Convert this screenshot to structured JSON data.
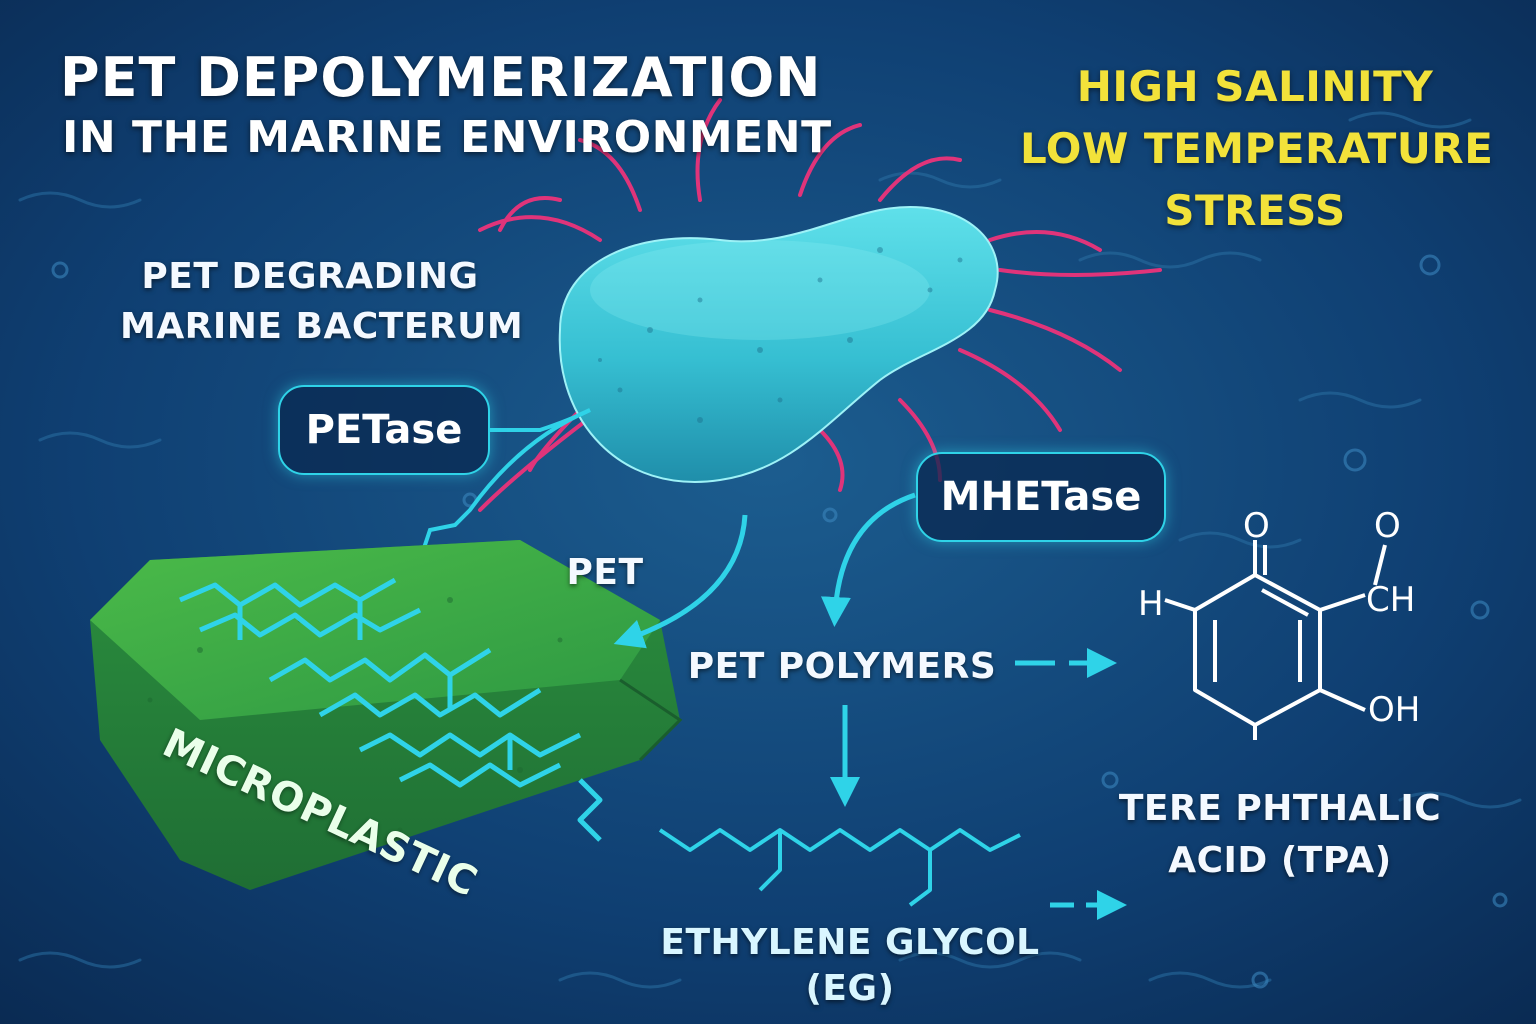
{
  "title": {
    "line1": "PET DEPOLYMERIZATION",
    "line2": "IN THE MARINE ENVIRONMENT"
  },
  "stress": {
    "line1": "HIGH SALINITY",
    "line2": "LOW TEMPERATURE",
    "line3": "STRESS"
  },
  "bacterium": {
    "line1": "PET DEGRADING",
    "line2": "MARINE BACTERUM"
  },
  "enzymes": {
    "petase": "PETase",
    "mhetase": "MHETase"
  },
  "labels": {
    "pet": "PET",
    "pet_polymers": "PET POLYMERS",
    "microplastic": "MICROPLASTIC",
    "eg_line1": "ETHYLENE GLYCOL",
    "eg_line2": "(EG)",
    "tpa_line1": "TERE PHTHALIC",
    "tpa_line2": "ACID (TPA)"
  },
  "molecule": {
    "o_left": "O",
    "o_right": "O",
    "h_left": "H",
    "ch": "CH",
    "oh": "OH"
  },
  "colors": {
    "background": "#0d3a6b",
    "accent_cyan": "#2fd3e8",
    "flagella_pink": "#e0347a",
    "bacterium": "#3cc7d6",
    "microplastic": "#2f9e47",
    "stress_yellow": "#f2e23a"
  }
}
